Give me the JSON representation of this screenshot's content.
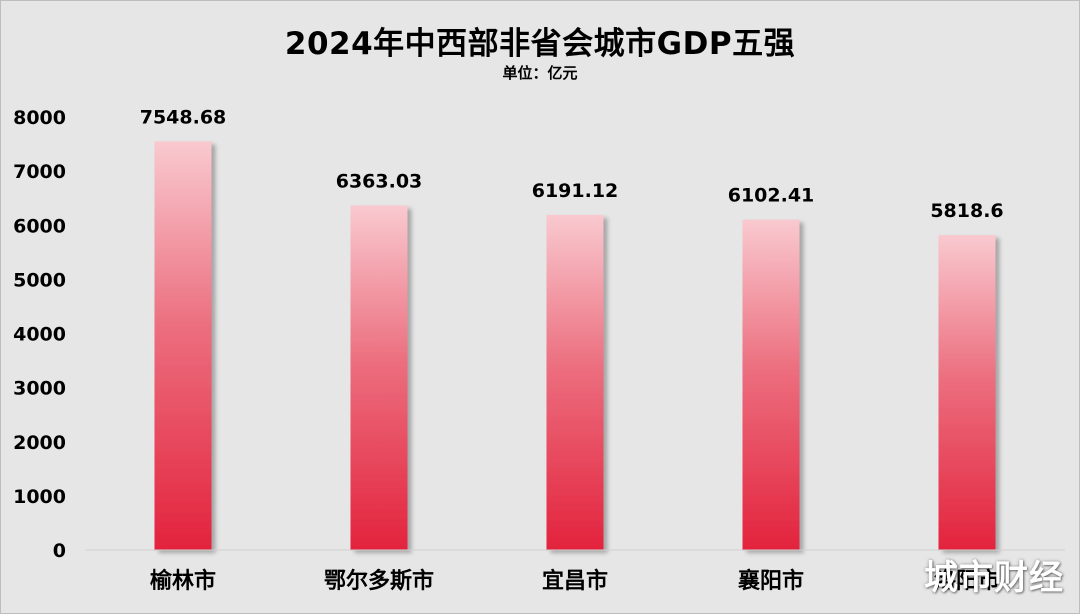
{
  "chart_data": {
    "type": "bar",
    "title": "2024年中西部非省会城市GDP五强",
    "subtitle": "单位：亿元",
    "categories": [
      "榆林市",
      "鄂尔多斯市",
      "宜昌市",
      "襄阳市",
      "洛阳市"
    ],
    "values": [
      7548.68,
      6363.03,
      6191.12,
      6102.41,
      5818.6
    ],
    "data_labels": [
      "7548.68",
      "6363.03",
      "6191.12",
      "6102.41",
      "5818.6"
    ],
    "xlabel": "",
    "ylabel": "",
    "ylim": [
      0,
      8000
    ],
    "yticks": [
      0,
      1000,
      2000,
      3000,
      4000,
      5000,
      6000,
      7000,
      8000
    ],
    "grid": false,
    "legend": "none",
    "colors": {
      "bar_top": "#f9c9cf",
      "bar_bottom": "#e3233d",
      "background": "#e6e6e6",
      "axis_line": "#d0d0d0",
      "text": "#000000"
    }
  },
  "watermark": "城市财经"
}
